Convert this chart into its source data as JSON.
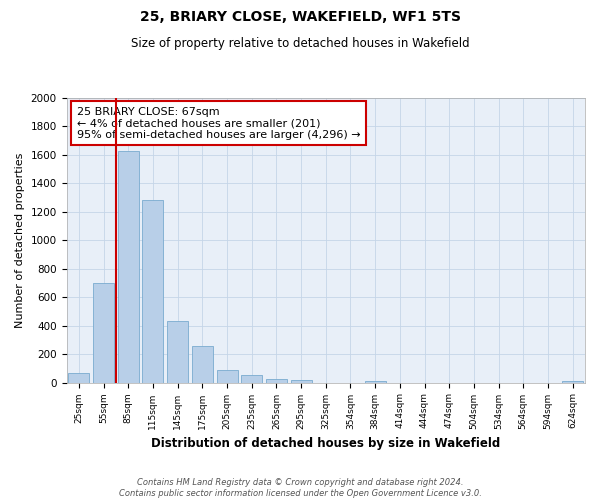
{
  "title": "25, BRIARY CLOSE, WAKEFIELD, WF1 5TS",
  "subtitle": "Size of property relative to detached houses in Wakefield",
  "xlabel": "Distribution of detached houses by size in Wakefield",
  "ylabel": "Number of detached properties",
  "categories": [
    "25sqm",
    "55sqm",
    "85sqm",
    "115sqm",
    "145sqm",
    "175sqm",
    "205sqm",
    "235sqm",
    "265sqm",
    "295sqm",
    "325sqm",
    "354sqm",
    "384sqm",
    "414sqm",
    "444sqm",
    "474sqm",
    "504sqm",
    "534sqm",
    "564sqm",
    "594sqm",
    "624sqm"
  ],
  "values": [
    65,
    700,
    1630,
    1280,
    430,
    255,
    90,
    50,
    28,
    15,
    0,
    0,
    12,
    0,
    0,
    0,
    0,
    0,
    0,
    0,
    10
  ],
  "bar_color": "#b8cfe8",
  "bar_edge_color": "#7aabcf",
  "background_color": "#ffffff",
  "axes_bg_color": "#e8eff8",
  "grid_color": "#c5d5e8",
  "property_line_color": "#cc0000",
  "annotation_text": "25 BRIARY CLOSE: 67sqm\n← 4% of detached houses are smaller (201)\n95% of semi-detached houses are larger (4,296) →",
  "annotation_box_color": "#cc0000",
  "ylim": [
    0,
    2000
  ],
  "yticks": [
    0,
    200,
    400,
    600,
    800,
    1000,
    1200,
    1400,
    1600,
    1800,
    2000
  ],
  "footnote": "Contains HM Land Registry data © Crown copyright and database right 2024.\nContains public sector information licensed under the Open Government Licence v3.0."
}
